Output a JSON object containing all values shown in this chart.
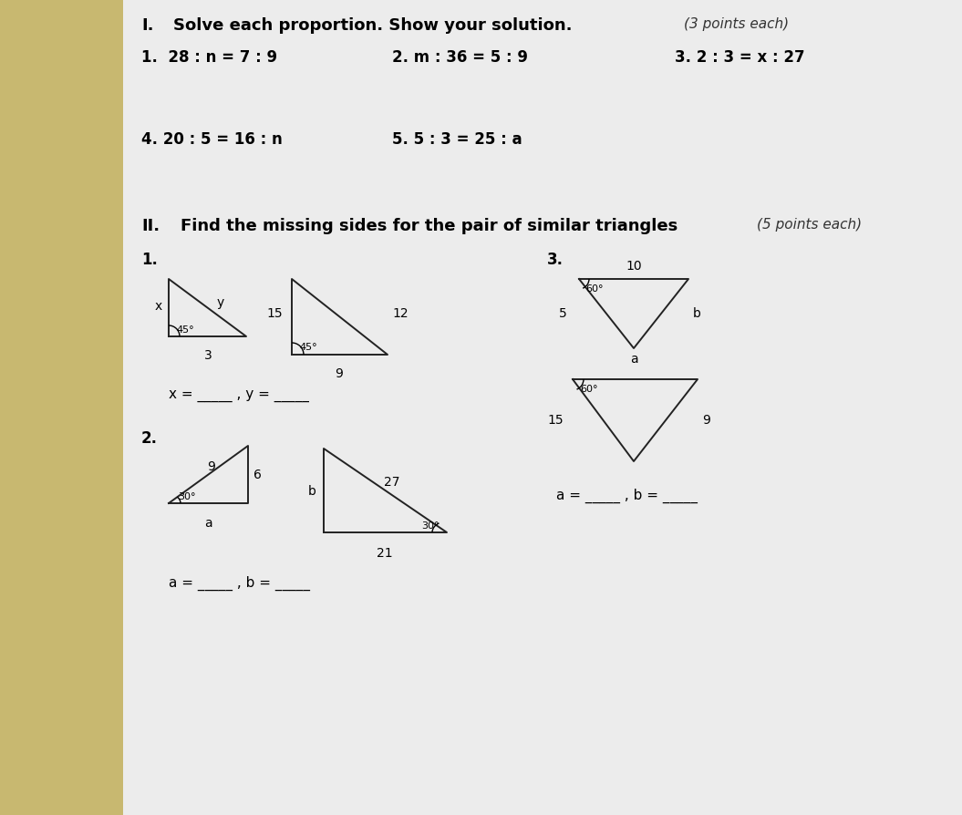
{
  "bg_color": "#c8b89a",
  "paper_color": "#eeeeee",
  "text_color": "#111111",
  "section_I_bold": "I.  Solve each proportion. Show your solution.",
  "section_I_italic": "(3 points each)",
  "p1": "1.  28 : n = 7 : 9",
  "p2": "2. m : 36 = 5 : 9",
  "p3": "3. 2 : 3 = x : 27",
  "p4": "4. 20 : 5 = 16 : n",
  "p5": "5. 5 : 3 = 25 : a",
  "section_II_bold": "II.  Find the missing sides for the pair of similar triangles",
  "section_II_italic": "(5 points each)",
  "lbl1": "1.",
  "lbl2": "2.",
  "lbl3": "3.",
  "ans_xy": "x = _____ , y = _____",
  "ans_ab1": "a = _____ , b = _____",
  "ans_ab2": "a = _____ , b = _____"
}
